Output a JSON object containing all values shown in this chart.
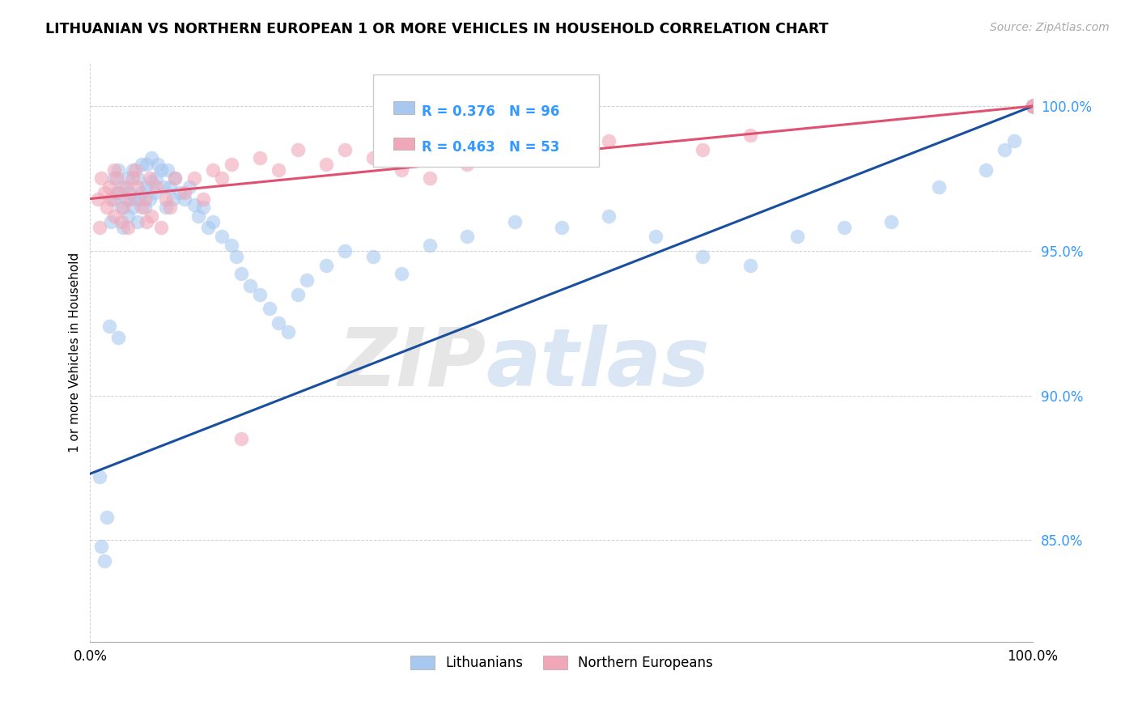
{
  "title": "LITHUANIAN VS NORTHERN EUROPEAN 1 OR MORE VEHICLES IN HOUSEHOLD CORRELATION CHART",
  "source": "Source: ZipAtlas.com",
  "ylabel_label": "1 or more Vehicles in Household",
  "legend_labels": [
    "Lithuanians",
    "Northern Europeans"
  ],
  "blue_R": 0.376,
  "blue_N": 96,
  "pink_R": 0.463,
  "pink_N": 53,
  "blue_color": "#a8c8f0",
  "pink_color": "#f0a8b8",
  "blue_line_color": "#1a4fa0",
  "pink_line_color": "#e05070",
  "watermark_zip": "ZIP",
  "watermark_atlas": "atlas",
  "xlim": [
    0.0,
    1.0
  ],
  "ylim": [
    0.815,
    1.015
  ],
  "yticks": [
    0.85,
    0.9,
    0.95,
    1.0
  ],
  "xticks": [
    0.0,
    1.0
  ],
  "blue_points_x": [
    0.01,
    0.012,
    0.015,
    0.018,
    0.02,
    0.022,
    0.025,
    0.025,
    0.028,
    0.03,
    0.03,
    0.033,
    0.035,
    0.035,
    0.038,
    0.04,
    0.04,
    0.042,
    0.045,
    0.045,
    0.048,
    0.05,
    0.05,
    0.052,
    0.055,
    0.055,
    0.058,
    0.06,
    0.06,
    0.063,
    0.065,
    0.065,
    0.068,
    0.07,
    0.072,
    0.075,
    0.078,
    0.08,
    0.082,
    0.085,
    0.088,
    0.09,
    0.095,
    0.1,
    0.105,
    0.11,
    0.115,
    0.12,
    0.125,
    0.13,
    0.14,
    0.15,
    0.155,
    0.16,
    0.17,
    0.18,
    0.19,
    0.2,
    0.21,
    0.22,
    0.23,
    0.25,
    0.27,
    0.3,
    0.33,
    0.36,
    0.4,
    0.45,
    0.5,
    0.55,
    0.6,
    0.65,
    0.7,
    0.75,
    0.8,
    0.85,
    0.9,
    0.95,
    0.97,
    0.98,
    1.0,
    1.0,
    1.0,
    1.0,
    1.0,
    1.0,
    1.0,
    1.0,
    1.0,
    1.0,
    1.0,
    1.0,
    1.0,
    1.0,
    1.0,
    1.0
  ],
  "blue_points_y": [
    0.872,
    0.848,
    0.843,
    0.858,
    0.924,
    0.96,
    0.968,
    0.975,
    0.97,
    0.978,
    0.92,
    0.965,
    0.958,
    0.972,
    0.968,
    0.962,
    0.975,
    0.97,
    0.965,
    0.978,
    0.968,
    0.96,
    0.975,
    0.968,
    0.97,
    0.98,
    0.965,
    0.972,
    0.98,
    0.968,
    0.974,
    0.982,
    0.97,
    0.975,
    0.98,
    0.978,
    0.972,
    0.965,
    0.978,
    0.972,
    0.968,
    0.975,
    0.97,
    0.968,
    0.972,
    0.966,
    0.962,
    0.965,
    0.958,
    0.96,
    0.955,
    0.952,
    0.948,
    0.942,
    0.938,
    0.935,
    0.93,
    0.925,
    0.922,
    0.935,
    0.94,
    0.945,
    0.95,
    0.948,
    0.942,
    0.952,
    0.955,
    0.96,
    0.958,
    0.962,
    0.955,
    0.948,
    0.945,
    0.955,
    0.958,
    0.96,
    0.972,
    0.978,
    0.985,
    0.988,
    1.0,
    1.0,
    1.0,
    1.0,
    1.0,
    1.0,
    1.0,
    1.0,
    1.0,
    1.0,
    1.0,
    1.0,
    1.0,
    1.0,
    1.0,
    1.0
  ],
  "pink_points_x": [
    0.008,
    0.01,
    0.012,
    0.015,
    0.018,
    0.02,
    0.022,
    0.025,
    0.025,
    0.028,
    0.03,
    0.033,
    0.035,
    0.038,
    0.04,
    0.042,
    0.045,
    0.048,
    0.05,
    0.055,
    0.058,
    0.06,
    0.063,
    0.065,
    0.07,
    0.075,
    0.08,
    0.085,
    0.09,
    0.1,
    0.11,
    0.12,
    0.13,
    0.14,
    0.15,
    0.16,
    0.18,
    0.2,
    0.22,
    0.25,
    0.27,
    0.3,
    0.33,
    0.36,
    0.4,
    0.45,
    0.5,
    0.55,
    0.65,
    0.7,
    1.0,
    1.0,
    1.0
  ],
  "pink_points_y": [
    0.968,
    0.958,
    0.975,
    0.97,
    0.965,
    0.972,
    0.968,
    0.978,
    0.962,
    0.975,
    0.97,
    0.96,
    0.965,
    0.972,
    0.958,
    0.968,
    0.975,
    0.978,
    0.972,
    0.965,
    0.968,
    0.96,
    0.975,
    0.962,
    0.972,
    0.958,
    0.968,
    0.965,
    0.975,
    0.97,
    0.975,
    0.968,
    0.978,
    0.975,
    0.98,
    0.885,
    0.982,
    0.978,
    0.985,
    0.98,
    0.985,
    0.982,
    0.978,
    0.975,
    0.98,
    0.985,
    0.982,
    0.988,
    0.985,
    0.99,
    1.0,
    1.0,
    1.0
  ],
  "blue_line_x0": 0.0,
  "blue_line_y0": 0.873,
  "blue_line_x1": 1.0,
  "blue_line_y1": 1.0,
  "pink_line_x0": 0.0,
  "pink_line_y0": 0.968,
  "pink_line_x1": 1.0,
  "pink_line_y1": 1.0
}
